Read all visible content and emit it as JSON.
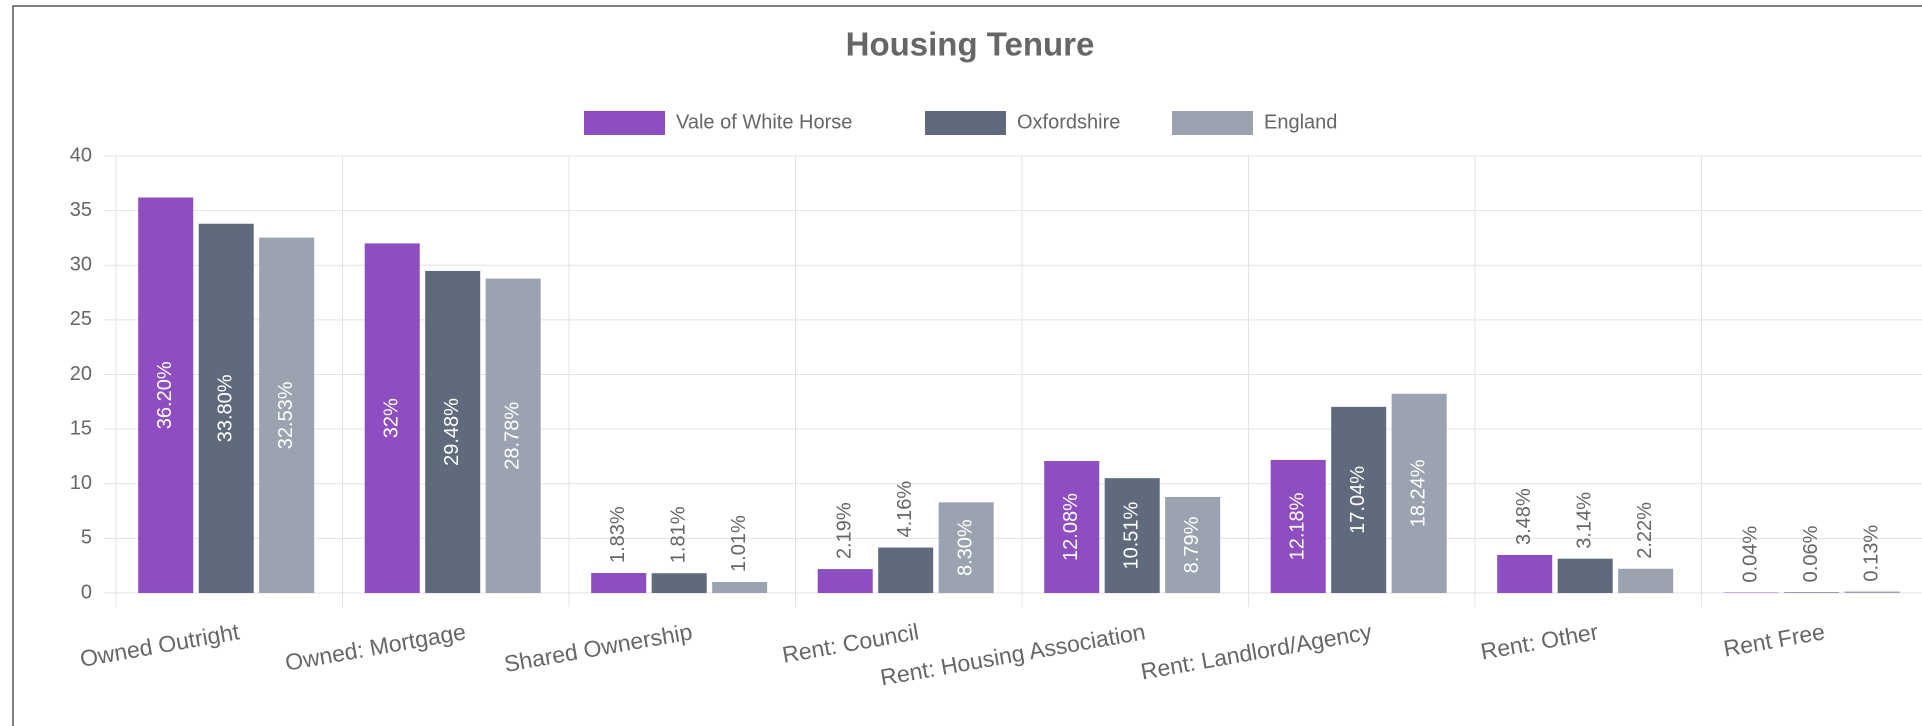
{
  "chart_data": {
    "type": "bar",
    "title": "Housing Tenure",
    "categories": [
      "Owned Outright",
      "Owned: Mortgage",
      "Shared Ownership",
      "Rent: Council",
      "Rent: Housing Association",
      "Rent: Landlord/Agency",
      "Rent: Other",
      "Rent Free"
    ],
    "series": [
      {
        "name": "Vale of White Horse",
        "color": "#8e4dc0",
        "values": [
          36.2,
          32,
          1.83,
          2.19,
          12.08,
          12.18,
          3.48,
          0.04
        ],
        "value_labels": [
          "36.20%",
          "32%",
          "1.83%",
          "2.19%",
          "12.08%",
          "12.18%",
          "3.48%",
          "0.04%"
        ]
      },
      {
        "name": "Oxfordshire",
        "color": "#5f6b7d",
        "values": [
          33.8,
          29.48,
          1.81,
          4.16,
          10.51,
          17.04,
          3.14,
          0.06
        ],
        "value_labels": [
          "33.80%",
          "29.48%",
          "1.81%",
          "4.16%",
          "10.51%",
          "17.04%",
          "3.14%",
          "0.06%"
        ]
      },
      {
        "name": "England",
        "color": "#9ca3b0",
        "values": [
          32.53,
          28.78,
          1.01,
          8.3,
          8.79,
          18.24,
          2.22,
          0.13
        ],
        "value_labels": [
          "32.53%",
          "28.78%",
          "1.01%",
          "8.30%",
          "8.79%",
          "18.24%",
          "2.22%",
          "0.13%"
        ]
      }
    ],
    "ylim": [
      0,
      40
    ],
    "yticks": [
      0,
      5,
      10,
      15,
      20,
      25,
      30,
      35,
      40
    ],
    "grid": true,
    "legend": "top"
  }
}
